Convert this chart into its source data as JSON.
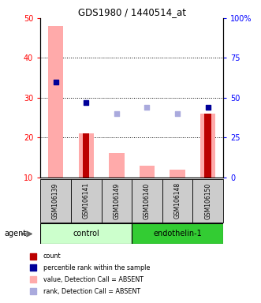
{
  "title": "GDS1980 / 1440514_at",
  "samples": [
    "GSM106139",
    "GSM106141",
    "GSM106149",
    "GSM106140",
    "GSM106148",
    "GSM106150"
  ],
  "pink_bars_top": [
    48,
    21,
    16,
    13,
    12,
    26
  ],
  "red_bars_top": [
    0,
    21,
    0,
    0,
    0,
    26
  ],
  "blue_squares_pct": [
    60,
    47,
    0,
    0,
    0,
    44
  ],
  "light_blue_squares_pct": [
    0,
    0,
    40,
    44,
    40,
    0
  ],
  "ylim_left": [
    10,
    50
  ],
  "ylim_right": [
    0,
    100
  ],
  "yticks_left": [
    10,
    20,
    30,
    40,
    50
  ],
  "yticks_right": [
    0,
    25,
    50,
    75,
    100
  ],
  "ytick_labels_right": [
    "0",
    "25",
    "50",
    "75",
    "100%"
  ],
  "color_pink": "#ffaaaa",
  "color_red": "#bb0000",
  "color_blue": "#000099",
  "color_lightblue": "#aaaadd",
  "color_gray_bg": "#cccccc",
  "color_group_control": "#ccffcc",
  "color_group_endo": "#33cc33",
  "legend_items": [
    {
      "color": "#bb0000",
      "label": "count",
      "marker": "square"
    },
    {
      "color": "#000099",
      "label": "percentile rank within the sample",
      "marker": "square"
    },
    {
      "color": "#ffaaaa",
      "label": "value, Detection Call = ABSENT",
      "marker": "square"
    },
    {
      "color": "#aaaadd",
      "label": "rank, Detection Call = ABSENT",
      "marker": "square"
    }
  ],
  "agent_label": "agent"
}
